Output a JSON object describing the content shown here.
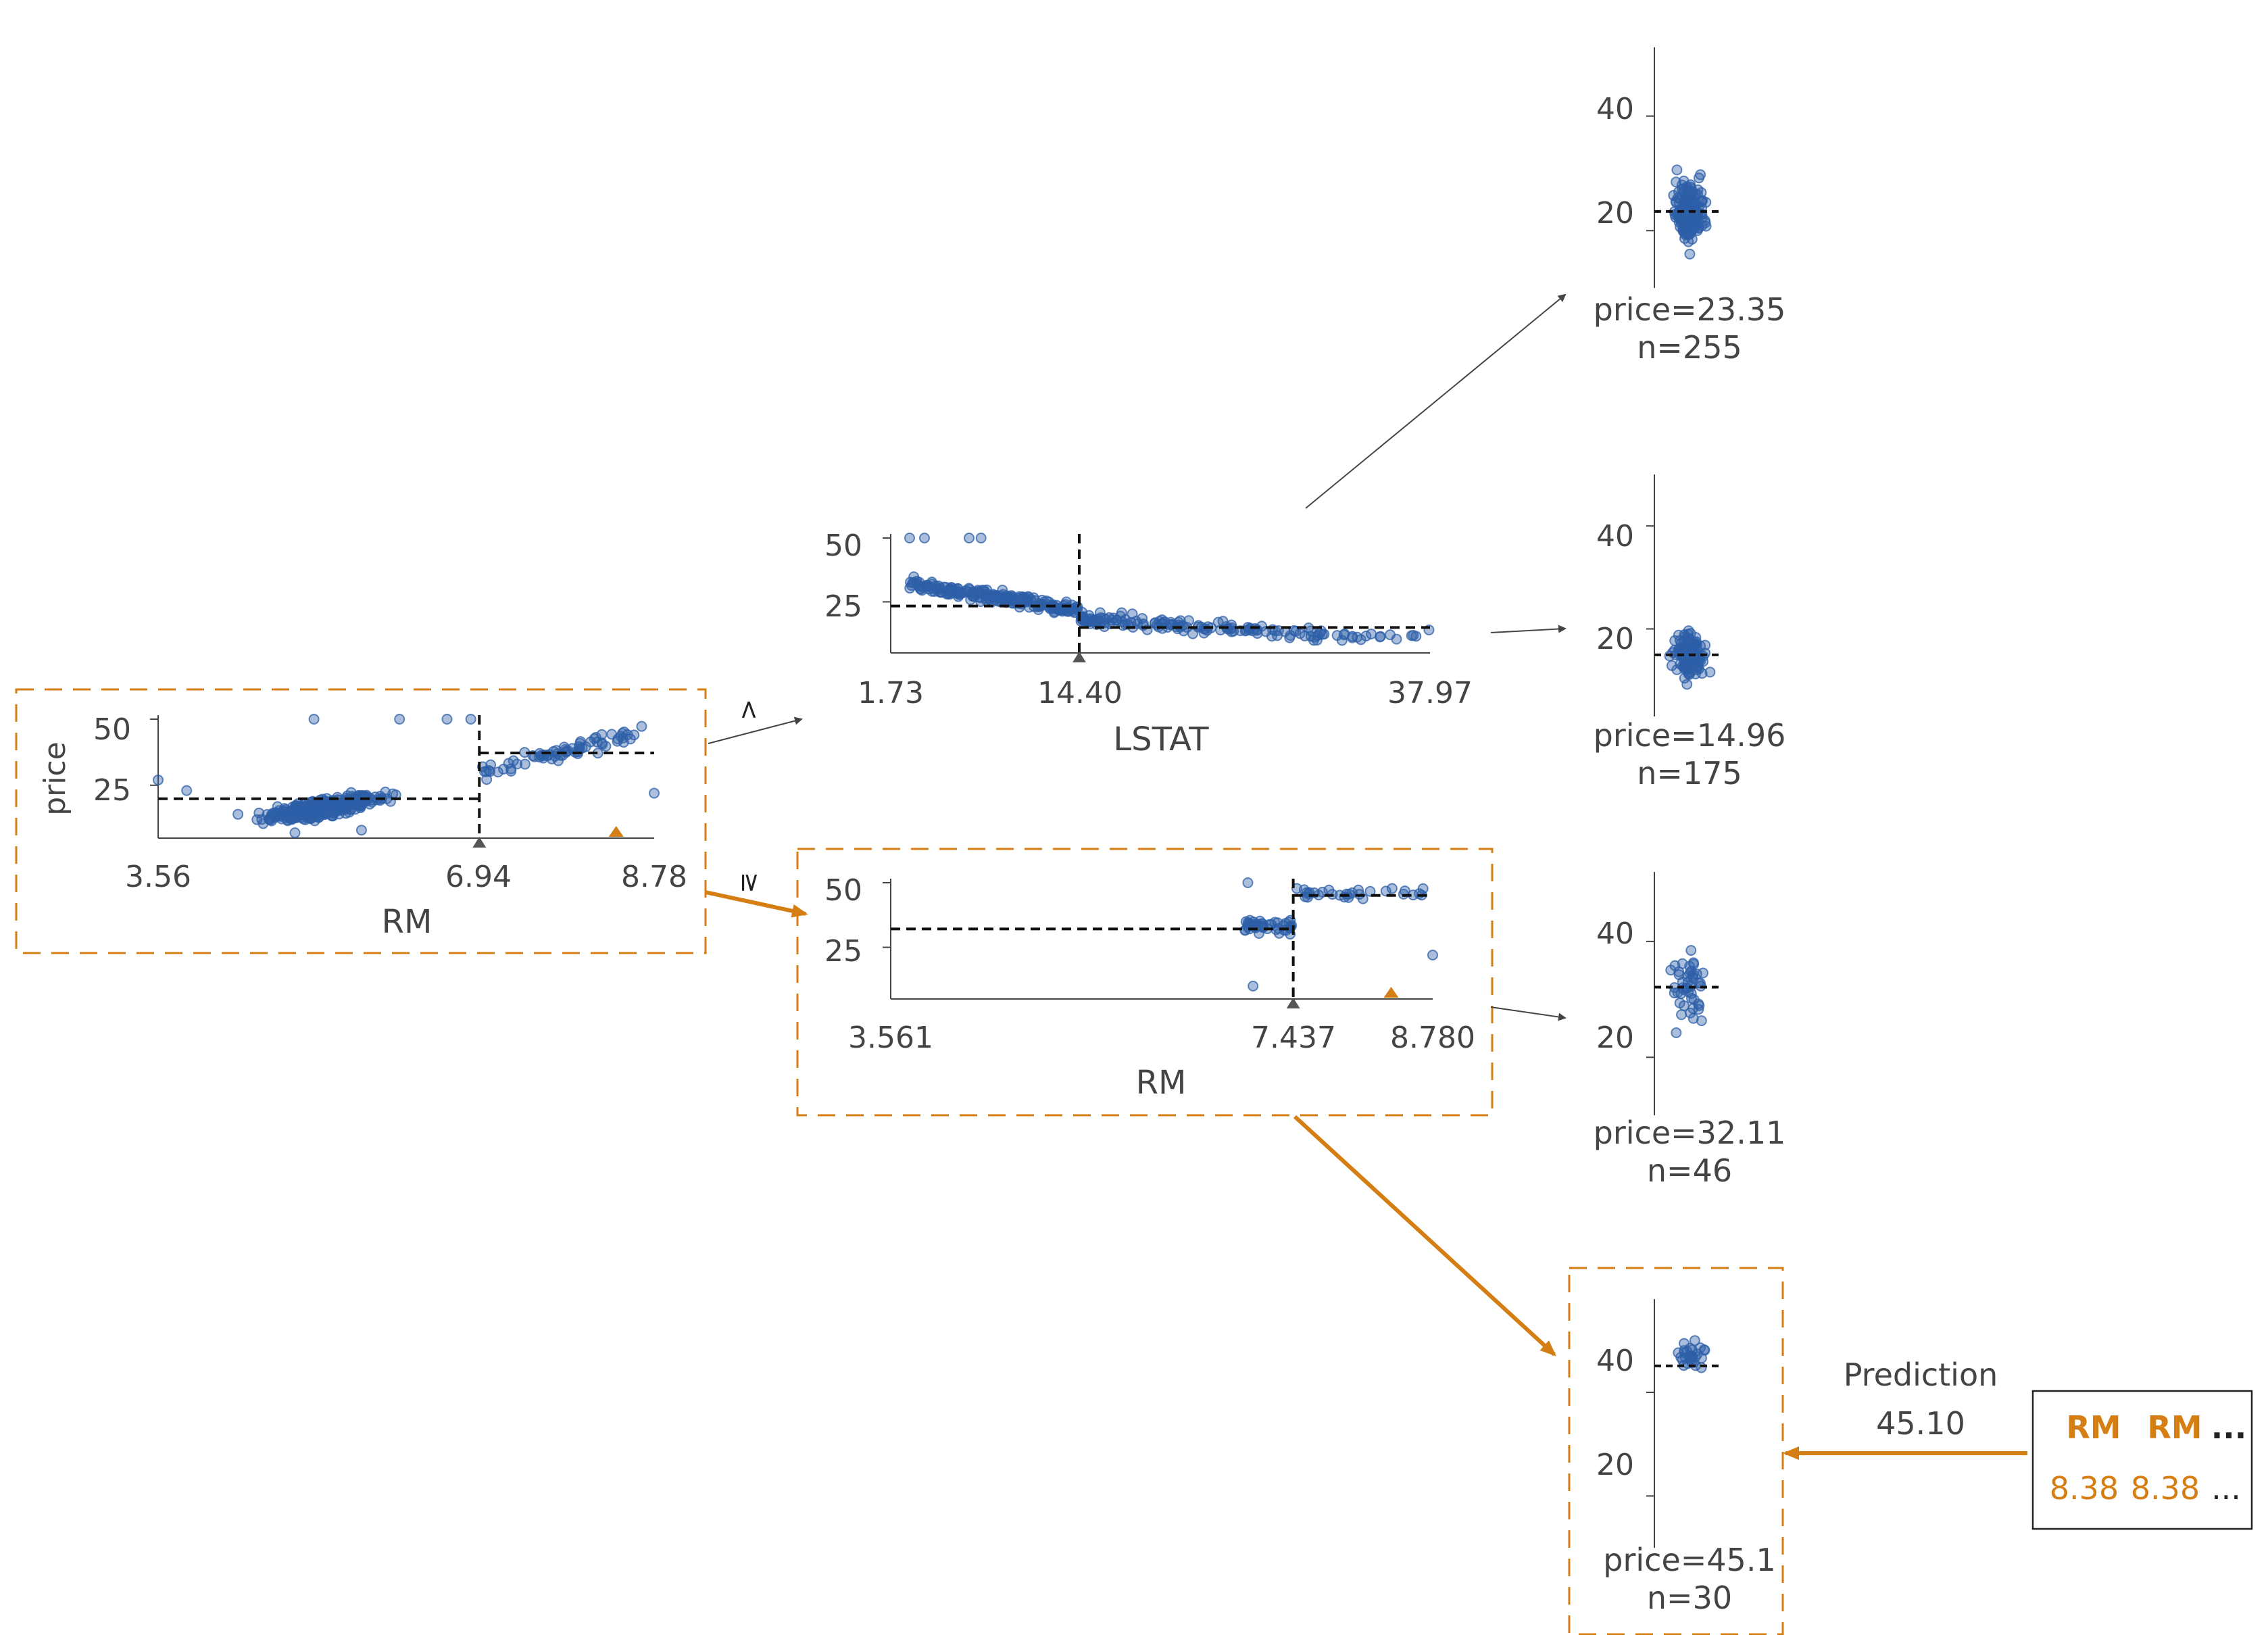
{
  "colors": {
    "highlight": "#d47e14",
    "dot": "#2d5fa8",
    "axis": "#444444",
    "dash": "#111111",
    "text": "#444444"
  },
  "edge_labels": {
    "less": "<",
    "greater_equal": "≥"
  },
  "chart_data": [
    {
      "id": "root",
      "type": "scatter",
      "feature": "RM",
      "xlabel": "RM",
      "ylabel": "price",
      "x_ticks": [
        "3.56",
        "6.94",
        "8.78"
      ],
      "y_ticks": [
        "50",
        "25"
      ],
      "xlim": [
        3.56,
        8.78
      ],
      "ylim": [
        5,
        50
      ],
      "split": 6.94,
      "left_mean": 19.9,
      "right_mean": 37.2,
      "instance_value": 8.38,
      "highlighted": true
    },
    {
      "id": "lstat-node",
      "type": "scatter",
      "feature": "LSTAT",
      "xlabel": "LSTAT",
      "ylabel": "",
      "x_ticks": [
        "1.73",
        "14.40",
        "37.97"
      ],
      "y_ticks": [
        "50",
        "25"
      ],
      "xlim": [
        1.73,
        37.97
      ],
      "ylim": [
        5,
        50
      ],
      "split": 14.4,
      "left_mean": 23.35,
      "right_mean": 14.96,
      "highlighted": false
    },
    {
      "id": "rm-node",
      "type": "scatter",
      "feature": "RM",
      "xlabel": "RM",
      "ylabel": "",
      "x_ticks": [
        "3.561",
        "7.437",
        "8.780"
      ],
      "y_ticks": [
        "50",
        "25"
      ],
      "xlim": [
        3.561,
        8.78
      ],
      "ylim": [
        5,
        50
      ],
      "split": 7.437,
      "left_mean": 32.11,
      "right_mean": 45.1,
      "instance_value": 8.38,
      "highlighted": true
    },
    {
      "id": "leaf-1",
      "type": "scatter",
      "y_ticks": [
        "40",
        "20"
      ],
      "ylim": [
        10,
        52
      ],
      "mean": 23.35,
      "label_price": "price=23.35",
      "label_n": "n=255",
      "highlighted": false
    },
    {
      "id": "leaf-2",
      "type": "scatter",
      "y_ticks": [
        "40",
        "20"
      ],
      "ylim": [
        3,
        50
      ],
      "mean": 14.96,
      "label_price": "price=14.96",
      "label_n": "n=175",
      "highlighted": false
    },
    {
      "id": "leaf-3",
      "type": "scatter",
      "y_ticks": [
        "40",
        "20"
      ],
      "ylim": [
        10,
        52
      ],
      "mean": 32.11,
      "label_price": "price=32.11",
      "label_n": "n=46",
      "highlighted": false
    },
    {
      "id": "leaf-4",
      "type": "scatter",
      "y_ticks": [
        "40",
        "20"
      ],
      "ylim": [
        10,
        58
      ],
      "mean": 45.1,
      "label_price": "price=45.1",
      "label_n": "n=30",
      "highlighted": true
    }
  ],
  "prediction": {
    "title": "Prediction",
    "value": "45.10",
    "table": {
      "headers": [
        "RM",
        "RM",
        "..."
      ],
      "values": [
        "8.38",
        "8.38",
        "..."
      ]
    }
  }
}
